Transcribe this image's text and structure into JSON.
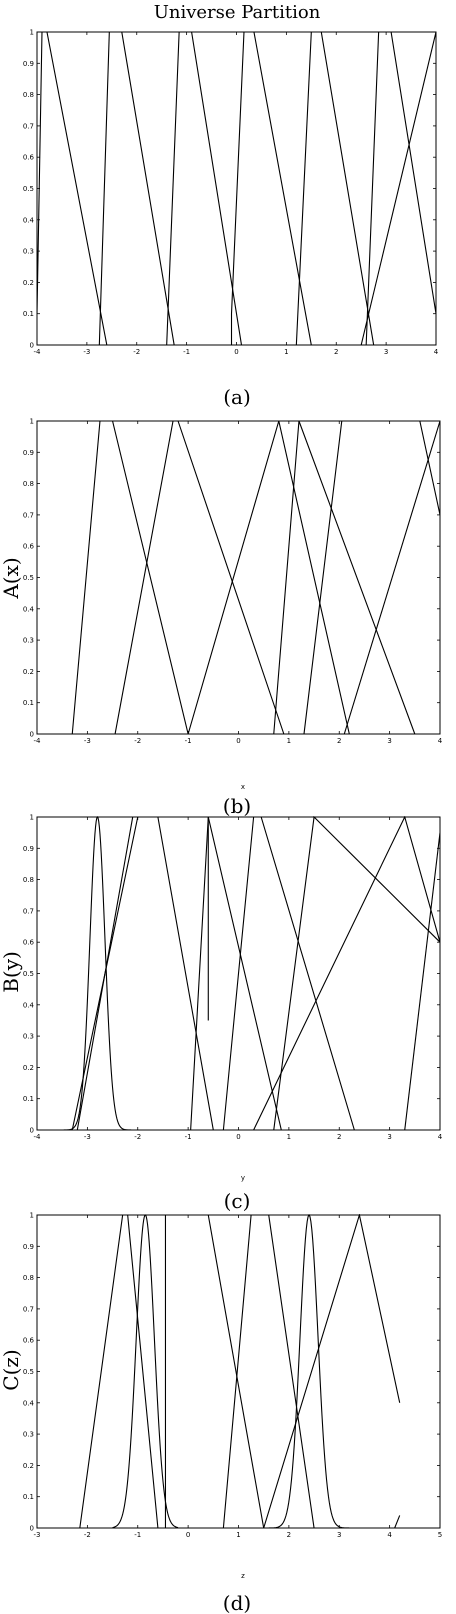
{
  "chart_data": [
    {
      "type": "line",
      "title": "Universe Partition",
      "caption": "(a)",
      "xlabel": "",
      "ylabel": "",
      "xlim": [
        -4,
        4
      ],
      "ylim": [
        0,
        1
      ],
      "x_ticks": [
        "-4",
        "-3",
        "-2",
        "-1",
        "0",
        "1",
        "2",
        "3",
        "4"
      ],
      "y_ticks": [
        "0",
        "0.1",
        "0.2",
        "0.3",
        "0.4",
        "0.5",
        "0.6",
        "0.7",
        "0.8",
        "0.9",
        "1"
      ],
      "series": [
        {
          "shape": "linear",
          "points": [
            [
              -4,
              0.1
            ],
            [
              -3.9,
              1
            ],
            [
              -3.8,
              1
            ],
            [
              -2.6,
              0
            ]
          ]
        },
        {
          "shape": "linear",
          "points": [
            [
              -2.75,
              0
            ],
            [
              -2.55,
              1
            ],
            [
              -2.3,
              1
            ],
            [
              -1.25,
              0
            ]
          ]
        },
        {
          "shape": "linear",
          "points": [
            [
              -1.4,
              0
            ],
            [
              -1.15,
              1
            ],
            [
              -0.9,
              1
            ],
            [
              0.1,
              0
            ]
          ]
        },
        {
          "shape": "linear",
          "points": [
            [
              -0.1,
              0
            ],
            [
              -0.1,
              0.1
            ],
            [
              0.15,
              1
            ],
            [
              0.35,
              1
            ],
            [
              1.5,
              0
            ]
          ]
        },
        {
          "shape": "linear",
          "points": [
            [
              1.2,
              0
            ],
            [
              1.5,
              1
            ],
            [
              1.7,
              1
            ],
            [
              2.75,
              0
            ]
          ]
        },
        {
          "shape": "linear",
          "points": [
            [
              2.6,
              0
            ],
            [
              2.85,
              1
            ],
            [
              3.1,
              1
            ],
            [
              4,
              0.1
            ]
          ]
        },
        {
          "shape": "linear",
          "points": [
            [
              2.5,
              0
            ],
            [
              4,
              1
            ]
          ]
        }
      ]
    },
    {
      "type": "line",
      "title": "",
      "caption": "(b)",
      "xlabel": "x",
      "ylabel": "A(x)",
      "xlim": [
        -4,
        4
      ],
      "ylim": [
        0,
        1
      ],
      "x_ticks": [
        "-4",
        "-3",
        "-2",
        "-1",
        "0",
        "1",
        "2",
        "3",
        "4"
      ],
      "y_ticks": [
        "0",
        "0.1",
        "0.2",
        "0.3",
        "0.4",
        "0.5",
        "0.6",
        "0.7",
        "0.8",
        "0.9",
        "1"
      ],
      "series": [
        {
          "shape": "linear",
          "points": [
            [
              -3.3,
              0
            ],
            [
              -2.75,
              1
            ],
            [
              -2.5,
              1
            ],
            [
              -1,
              0
            ]
          ]
        },
        {
          "shape": "linear",
          "points": [
            [
              -2.45,
              0
            ],
            [
              -1.3,
              1
            ],
            [
              -1.2,
              1
            ],
            [
              0.9,
              0
            ]
          ]
        },
        {
          "shape": "linear",
          "points": [
            [
              -1,
              0
            ],
            [
              0.8,
              1
            ],
            [
              2.2,
              0
            ]
          ]
        },
        {
          "shape": "linear",
          "points": [
            [
              0.7,
              0
            ],
            [
              1.2,
              1
            ],
            [
              3.5,
              0
            ]
          ]
        },
        {
          "shape": "linear",
          "points": [
            [
              1.3,
              0
            ],
            [
              2.05,
              1
            ],
            [
              3.6,
              1
            ],
            [
              4,
              0.7
            ]
          ]
        },
        {
          "shape": "linear",
          "points": [
            [
              2.1,
              0
            ],
            [
              4,
              1
            ]
          ]
        }
      ]
    },
    {
      "type": "line",
      "title": "",
      "caption": "(c)",
      "xlabel": "y",
      "ylabel": "B(y)",
      "xlim": [
        -4,
        4
      ],
      "ylim": [
        0,
        1
      ],
      "x_ticks": [
        "-4",
        "-3",
        "-2",
        "-1",
        "0",
        "1",
        "2",
        "3",
        "4"
      ],
      "y_ticks": [
        "0",
        "0.1",
        "0.2",
        "0.3",
        "0.4",
        "0.5",
        "0.6",
        "0.7",
        "0.8",
        "0.9",
        "1"
      ],
      "series": [
        {
          "shape": "gauss",
          "center": -2.8,
          "sigma": 0.15,
          "xmin": -3.5,
          "xmax": -2.0
        },
        {
          "shape": "linear",
          "points": [
            [
              -3.3,
              0
            ],
            [
              -2,
              1
            ],
            [
              -1.6,
              1
            ],
            [
              -0.5,
              0
            ]
          ]
        },
        {
          "shape": "linear",
          "points": [
            [
              -3.2,
              0
            ],
            [
              -2.1,
              1
            ]
          ]
        },
        {
          "shape": "linear",
          "points": [
            [
              -0.95,
              0
            ],
            [
              -0.6,
              1
            ],
            [
              0.85,
              0
            ]
          ]
        },
        {
          "shape": "linear",
          "points": [
            [
              -0.6,
              1
            ],
            [
              -0.6,
              0.35
            ]
          ]
        },
        {
          "shape": "linear",
          "points": [
            [
              -0.3,
              0
            ],
            [
              0.3,
              1
            ],
            [
              0.45,
              1
            ],
            [
              2.3,
              0
            ]
          ]
        },
        {
          "shape": "linear",
          "points": [
            [
              0.7,
              0
            ],
            [
              1.5,
              1
            ],
            [
              4,
              0.6
            ]
          ]
        },
        {
          "shape": "linear",
          "points": [
            [
              0.3,
              0
            ],
            [
              3.3,
              1
            ],
            [
              4,
              0.6
            ]
          ]
        },
        {
          "shape": "linear",
          "points": [
            [
              3.3,
              0
            ],
            [
              4,
              0.95
            ]
          ]
        }
      ]
    },
    {
      "type": "line",
      "title": "",
      "caption": "(d)",
      "xlabel": "z",
      "ylabel": "C(z)",
      "xlim": [
        -3,
        5
      ],
      "ylim": [
        0,
        1
      ],
      "x_ticks": [
        "-3",
        "-2",
        "-1",
        "0",
        "1",
        "2",
        "3",
        "4",
        "5"
      ],
      "y_ticks": [
        "0",
        "0.1",
        "0.2",
        "0.3",
        "0.4",
        "0.5",
        "0.6",
        "0.7",
        "0.8",
        "0.9",
        "1"
      ],
      "series": [
        {
          "shape": "linear",
          "points": [
            [
              -2.15,
              0
            ],
            [
              -1.3,
              1
            ],
            [
              -1.2,
              1
            ],
            [
              -0.6,
              0
            ]
          ]
        },
        {
          "shape": "gauss",
          "center": -0.85,
          "sigma": 0.18,
          "xmin": -1.5,
          "xmax": -0.2
        },
        {
          "shape": "linear",
          "points": [
            [
              -0.55,
              0
            ],
            [
              -0.45,
              0
            ],
            [
              -0.45,
              1
            ],
            [
              0.4,
              1
            ],
            [
              1.5,
              0
            ]
          ]
        },
        {
          "shape": "linear",
          "points": [
            [
              0.7,
              0
            ],
            [
              1.25,
              1
            ],
            [
              1.6,
              1
            ],
            [
              2.5,
              0
            ]
          ]
        },
        {
          "shape": "gauss",
          "center": 2.4,
          "sigma": 0.18,
          "xmin": 1.3,
          "xmax": 3.5
        },
        {
          "shape": "linear",
          "points": [
            [
              1.5,
              0
            ],
            [
              3.4,
              1
            ],
            [
              4.2,
              0.4
            ]
          ]
        },
        {
          "shape": "linear",
          "points": [
            [
              4.1,
              0
            ],
            [
              4.2,
              0.04
            ]
          ]
        }
      ]
    }
  ]
}
